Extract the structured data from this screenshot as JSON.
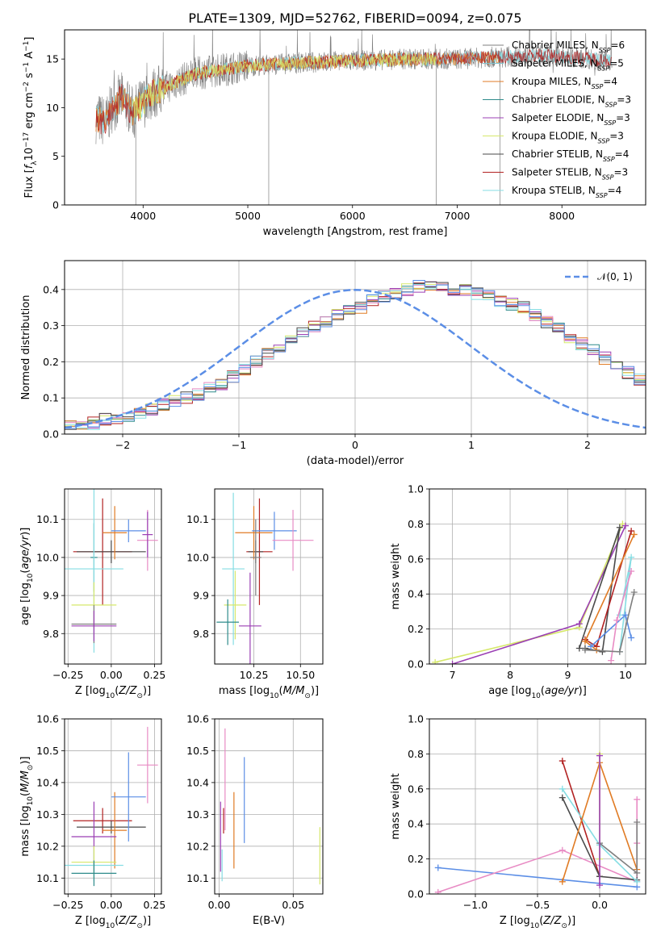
{
  "figure_title": "PLATE=1309, MJD=52762, FIBERID=0094, z=0.075",
  "colors": {
    "Chabrier MILES": "#7f7f7f",
    "Salpeter MILES": "#7ec3cc",
    "Kroupa MILES": "#e07b24",
    "Chabrier ELODIE": "#2e8b8b",
    "Salpeter ELODIE": "#9b3fb4",
    "Kroupa ELODIE": "#d6e86b",
    "Chabrier STELIB": "#4a4a4a",
    "Salpeter STELIB": "#b22222",
    "Kroupa STELIB": "#86dde3",
    "Blue": "#5b8ee6",
    "Pink": "#e88bc4",
    "Gauss": "#5b8ee6"
  },
  "chart_data": [
    {
      "id": "spectrum",
      "type": "line",
      "xlabel": "wavelength [Angstrom, rest frame]",
      "ylabel": "Flux [f_λ 10^-17 erg cm^-2 s^-1 A^-1]",
      "xlim": [
        3250,
        8800
      ],
      "ylim": [
        0,
        18
      ],
      "xticks": [
        4000,
        5000,
        6000,
        7000,
        8000
      ],
      "yticks": [
        0,
        5,
        10,
        15
      ],
      "grid": false,
      "legend_position": "right",
      "continuum": {
        "x": [
          3550,
          3650,
          3700,
          3800,
          3900,
          4000,
          4100,
          4300,
          4500,
          5000,
          5500,
          6000,
          6500,
          7000,
          7400,
          7800,
          8200,
          8500
        ],
        "y": [
          9.0,
          8.5,
          10.0,
          11.0,
          9.5,
          10.5,
          11.5,
          12.5,
          13.5,
          14.3,
          14.6,
          14.8,
          15.0,
          15.0,
          15.2,
          15.4,
          15.1,
          14.8
        ]
      },
      "legend": [
        {
          "series": "Chabrier MILES",
          "label": "Chabrier MILES, N",
          "nssp": "=6"
        },
        {
          "series": "Salpeter MILES",
          "label": "Salpeter MILES, N",
          "nssp": "=5"
        },
        {
          "series": "Kroupa MILES",
          "label": "Kroupa MILES, N",
          "nssp": "=4"
        },
        {
          "series": "Chabrier ELODIE",
          "label": "Chabrier ELODIE, N",
          "nssp": "=3"
        },
        {
          "series": "Salpeter ELODIE",
          "label": "Salpeter ELODIE, N",
          "nssp": "=3"
        },
        {
          "series": "Kroupa ELODIE",
          "label": "Kroupa ELODIE, N",
          "nssp": "=3"
        },
        {
          "series": "Chabrier STELIB",
          "label": "Chabrier STELIB, N",
          "nssp": "=4"
        },
        {
          "series": "Salpeter STELIB",
          "label": "Salpeter STELIB, N",
          "nssp": "=3"
        },
        {
          "series": "Kroupa STELIB",
          "label": "Kroupa STELIB, N",
          "nssp": "=4"
        }
      ]
    },
    {
      "id": "residuals",
      "type": "bar",
      "xlabel": "(data-model)/error",
      "ylabel": "Normed distribution",
      "xlim": [
        -2.5,
        2.5
      ],
      "ylim": [
        0,
        0.48
      ],
      "xticks": [
        -2,
        -1,
        0,
        1,
        2
      ],
      "yticks": [
        0.0,
        0.1,
        0.2,
        0.3,
        0.4
      ],
      "grid": true,
      "legend_position": "top-right",
      "legend_label": "𝒩(0, 1)",
      "bin_width": 0.1,
      "bin_start": -2.5,
      "base_hist": [
        0.02,
        0.02,
        0.03,
        0.04,
        0.04,
        0.05,
        0.06,
        0.07,
        0.08,
        0.09,
        0.1,
        0.11,
        0.13,
        0.14,
        0.16,
        0.18,
        0.2,
        0.22,
        0.24,
        0.26,
        0.28,
        0.3,
        0.31,
        0.33,
        0.34,
        0.35,
        0.37,
        0.38,
        0.39,
        0.4,
        0.41,
        0.41,
        0.41,
        0.4,
        0.4,
        0.39,
        0.38,
        0.37,
        0.36,
        0.35,
        0.33,
        0.31,
        0.29,
        0.27,
        0.25,
        0.23,
        0.21,
        0.19,
        0.17,
        0.15,
        0.14,
        0.12,
        0.11,
        0.1,
        0.09,
        0.08,
        0.07,
        0.06,
        0.05,
        0.04,
        0.04,
        0.03,
        0.03,
        0.03,
        0.02,
        0.02,
        0.02,
        0.02,
        0.02,
        0.02
      ]
    },
    {
      "id": "z-age",
      "type": "scatter",
      "xlabel": "Z [log10(Z/Z⊙)]",
      "ylabel": "age [log10(age/yr)]",
      "xlim": [
        -0.27,
        0.29
      ],
      "ylim": [
        9.72,
        10.18
      ],
      "xticks": [
        -0.25,
        0.0,
        0.25
      ],
      "xticklabels": [
        "−0.25",
        "0.00",
        "0.25"
      ],
      "yticks": [
        9.8,
        9.9,
        10.0,
        10.1
      ],
      "grid": true,
      "points": [
        {
          "series": "Salpeter STELIB",
          "x": -0.05,
          "xerr": 0.17,
          "y": 10.015,
          "yerr": 0.14
        },
        {
          "series": "Chabrier STELIB",
          "x": 0.0,
          "xerr": 0.2,
          "y": 10.015,
          "yerr": 0.03
        },
        {
          "series": "Kroupa MILES",
          "x": 0.02,
          "xerr": 0.07,
          "y": 10.065,
          "yerr": 0.07
        },
        {
          "series": "Blue",
          "x": 0.1,
          "xerr": 0.1,
          "y": 10.07,
          "yerr": 0.03
        },
        {
          "series": "Pink",
          "x": 0.21,
          "xerr": 0.06,
          "y": 10.045,
          "yerr": 0.08
        },
        {
          "series": "Salpeter ELODIE",
          "x": 0.21,
          "xerr": 0.03,
          "y": 10.06,
          "yerr": 0.06
        },
        {
          "series": "Chabrier ELODIE",
          "x": -0.1,
          "xerr": 0.02,
          "y": 10.0,
          "yerr": 0.09
        },
        {
          "series": "Kroupa STELIB",
          "x": -0.1,
          "xerr": 0.17,
          "y": 9.97,
          "yerr": 0.22
        },
        {
          "series": "Kroupa ELODIE",
          "x": -0.1,
          "xerr": 0.13,
          "y": 9.875,
          "yerr": 0.06
        },
        {
          "series": "Chabrier MILES",
          "x": -0.1,
          "xerr": 0.13,
          "y": 9.825,
          "yerr": 0.05
        },
        {
          "series": "Salpeter ELODIE",
          "x": -0.1,
          "xerr": 0.13,
          "y": 9.82,
          "yerr": 0.04
        }
      ]
    },
    {
      "id": "mass-age",
      "type": "scatter",
      "xlabel": "mass [log10(M/M⊙)]",
      "ylabel": "",
      "xlim": [
        10.04,
        10.62
      ],
      "ylim": [
        9.72,
        10.18
      ],
      "xticks": [
        10.25,
        10.5
      ],
      "xticklabels": [
        "10.25",
        "10.50"
      ],
      "yticks": [
        9.8,
        9.9,
        10.0,
        10.1
      ],
      "grid": true,
      "points": [
        {
          "series": "Salpeter STELIB",
          "x": 10.28,
          "xerr": 0.07,
          "y": 10.015,
          "yerr": 0.14
        },
        {
          "series": "Chabrier STELIB",
          "x": 10.26,
          "xerr": 0.04,
          "y": 10.015,
          "yerr": 0.03
        },
        {
          "series": "Kroupa MILES",
          "x": 10.25,
          "xerr": 0.1,
          "y": 10.065,
          "yerr": 0.07
        },
        {
          "series": "Blue",
          "x": 10.36,
          "xerr": 0.12,
          "y": 10.07,
          "yerr": 0.05
        },
        {
          "series": "Pink",
          "x": 10.46,
          "xerr": 0.11,
          "y": 10.045,
          "yerr": 0.08
        },
        {
          "series": "Salpeter ELODIE",
          "x": 10.23,
          "xerr": 0.06,
          "y": 9.82,
          "yerr": 0.14
        },
        {
          "series": "Kroupa STELIB",
          "x": 10.14,
          "xerr": 0.06,
          "y": 9.97,
          "yerr": 0.2
        },
        {
          "series": "Kroupa ELODIE",
          "x": 10.15,
          "xerr": 0.06,
          "y": 9.875,
          "yerr": 0.09
        },
        {
          "series": "Chabrier ELODIE",
          "x": 10.11,
          "xerr": 0.06,
          "y": 9.83,
          "yerr": 0.06
        },
        {
          "series": "Chabrier MILES",
          "x": 10.26,
          "xerr": 0.03,
          "y": 10.0,
          "yerr": 0.1
        }
      ]
    },
    {
      "id": "age-massweight",
      "type": "line",
      "xlabel": "age [log10(age/yr)]",
      "ylabel": "mass weight",
      "xlim": [
        6.6,
        10.35
      ],
      "ylim": [
        0,
        1.0
      ],
      "xticks": [
        7,
        8,
        9,
        10
      ],
      "yticks": [
        0.0,
        0.2,
        0.4,
        0.6,
        0.8,
        1.0
      ],
      "grid": true,
      "series": [
        {
          "series": "Kroupa ELODIE",
          "x": [
            6.7,
            9.2,
            9.95
          ],
          "y": [
            0.01,
            0.21,
            0.8
          ]
        },
        {
          "series": "Salpeter ELODIE",
          "x": [
            7.0,
            9.2,
            10.0
          ],
          "y": [
            0.0,
            0.23,
            0.79
          ]
        },
        {
          "series": "Chabrier STELIB",
          "x": [
            9.2,
            9.9,
            9.6,
            9.3
          ],
          "y": [
            0.09,
            0.78,
            0.07,
            0.09
          ]
        },
        {
          "series": "Salpeter STELIB",
          "x": [
            9.3,
            9.5,
            10.1
          ],
          "y": [
            0.14,
            0.1,
            0.76
          ]
        },
        {
          "series": "Kroupa MILES",
          "x": [
            9.5,
            9.3,
            10.15
          ],
          "y": [
            0.08,
            0.13,
            0.74
          ]
        },
        {
          "series": "Kroupa STELIB",
          "x": [
            9.9,
            10.1,
            9.9
          ],
          "y": [
            0.07,
            0.61,
            0.28
          ]
        },
        {
          "series": "Blue",
          "x": [
            9.4,
            10.0,
            10.1
          ],
          "y": [
            0.1,
            0.28,
            0.15
          ]
        },
        {
          "series": "Pink",
          "x": [
            9.75,
            9.85,
            10.1
          ],
          "y": [
            0.02,
            0.25,
            0.53
          ]
        },
        {
          "series": "Chabrier MILES",
          "x": [
            9.3,
            9.9,
            10.15
          ],
          "y": [
            0.08,
            0.07,
            0.41
          ]
        }
      ]
    },
    {
      "id": "z-mass",
      "type": "scatter",
      "xlabel": "Z [log10(Z/Z⊙)]",
      "ylabel": "mass [log10(M/M⊙)]",
      "xlim": [
        -0.27,
        0.29
      ],
      "ylim": [
        10.05,
        10.6
      ],
      "xticks": [
        -0.25,
        0.0,
        0.25
      ],
      "xticklabels": [
        "−0.25",
        "0.00",
        "0.25"
      ],
      "yticks": [
        10.1,
        10.2,
        10.3,
        10.4,
        10.5,
        10.6
      ],
      "grid": true,
      "points": [
        {
          "series": "Salpeter STELIB",
          "x": -0.05,
          "xerr": 0.17,
          "y": 10.28,
          "yerr": 0.04
        },
        {
          "series": "Chabrier STELIB",
          "x": 0.0,
          "xerr": 0.2,
          "y": 10.26,
          "yerr": 0.02
        },
        {
          "series": "Kroupa MILES",
          "x": 0.02,
          "xerr": 0.07,
          "y": 10.25,
          "yerr": 0.12
        },
        {
          "series": "Blue",
          "x": 0.1,
          "xerr": 0.1,
          "y": 10.355,
          "yerr": 0.14
        },
        {
          "series": "Pink",
          "x": 0.21,
          "xerr": 0.06,
          "y": 10.455,
          "yerr": 0.12
        },
        {
          "series": "Salpeter ELODIE",
          "x": -0.1,
          "xerr": 0.13,
          "y": 10.23,
          "yerr": 0.11
        },
        {
          "series": "Kroupa STELIB",
          "x": -0.1,
          "xerr": 0.17,
          "y": 10.14,
          "yerr": 0.05
        },
        {
          "series": "Kroupa ELODIE",
          "x": -0.1,
          "xerr": 0.13,
          "y": 10.15,
          "yerr": 0.05
        },
        {
          "series": "Chabrier ELODIE",
          "x": -0.1,
          "xerr": 0.13,
          "y": 10.115,
          "yerr": 0.04
        }
      ]
    },
    {
      "id": "ebv-mass",
      "type": "scatter",
      "xlabel": "E(B-V)",
      "ylabel": "",
      "xlim": [
        -0.003,
        0.07
      ],
      "ylim": [
        10.05,
        10.6
      ],
      "xticks": [
        0.0,
        0.05
      ],
      "xticklabels": [
        "0.00",
        "0.05"
      ],
      "yticks": [
        10.1,
        10.2,
        10.3,
        10.4,
        10.5,
        10.6
      ],
      "grid": true,
      "points": [
        {
          "series": "Salpeter STELIB",
          "x": 0.003,
          "xerr": 0,
          "y": 10.28,
          "yerr": 0.04
        },
        {
          "series": "Salpeter ELODIE",
          "x": 0.001,
          "xerr": 0,
          "y": 10.23,
          "yerr": 0.11
        },
        {
          "series": "Pink",
          "x": 0.004,
          "xerr": 0,
          "y": 10.41,
          "yerr": 0.16
        },
        {
          "series": "Kroupa STELIB",
          "x": 0.002,
          "xerr": 0,
          "y": 10.14,
          "yerr": 0.05
        },
        {
          "series": "Kroupa MILES",
          "x": 0.01,
          "xerr": 0,
          "y": 10.25,
          "yerr": 0.12
        },
        {
          "series": "Blue",
          "x": 0.017,
          "xerr": 0,
          "y": 10.345,
          "yerr": 0.135
        },
        {
          "series": "Kroupa ELODIE",
          "x": 0.068,
          "xerr": 0,
          "y": 10.17,
          "yerr": 0.09
        }
      ]
    },
    {
      "id": "z-massweight",
      "type": "line",
      "xlabel": "Z [log10(Z/Z⊙)]",
      "ylabel": "mass weight",
      "xlim": [
        -1.37,
        0.37
      ],
      "ylim": [
        0,
        1.0
      ],
      "xticks": [
        -1.0,
        -0.5,
        0.0
      ],
      "xticklabels": [
        "−1.0",
        "−0.5",
        "0.0"
      ],
      "yticks": [
        0.0,
        0.2,
        0.4,
        0.6,
        0.8,
        1.0
      ],
      "grid": true,
      "series": [
        {
          "series": "Blue",
          "x": [
            -1.3,
            0.3
          ],
          "y": [
            0.15,
            0.04
          ]
        },
        {
          "series": "Pink",
          "x": [
            -1.3,
            -0.3,
            0.3,
            0.3,
            0.3
          ],
          "y": [
            0.01,
            0.25,
            0.07,
            0.29,
            0.54
          ]
        },
        {
          "series": "Salpeter STELIB",
          "x": [
            -0.3,
            0.0
          ],
          "y": [
            0.76,
            0.1
          ]
        },
        {
          "series": "Chabrier STELIB",
          "x": [
            -0.3,
            0.0,
            0.3
          ],
          "y": [
            0.55,
            0.1,
            0.08
          ]
        },
        {
          "series": "Kroupa STELIB",
          "x": [
            -0.3,
            0.0,
            0.3
          ],
          "y": [
            0.6,
            0.28,
            0.07
          ]
        },
        {
          "series": "Kroupa MILES",
          "x": [
            -0.3,
            0.0,
            0.3
          ],
          "y": [
            0.07,
            0.75,
            0.14
          ]
        },
        {
          "series": "Kroupa ELODIE",
          "x": [
            0.0,
            0.0
          ],
          "y": [
            0.8,
            0.2
          ]
        },
        {
          "series": "Chabrier MILES",
          "x": [
            0.0,
            0.3,
            0.3
          ],
          "y": [
            0.29,
            0.12,
            0.41
          ]
        },
        {
          "series": "Salpeter ELODIE",
          "x": [
            0.0,
            0.0
          ],
          "y": [
            0.79,
            0.05
          ]
        }
      ]
    }
  ]
}
